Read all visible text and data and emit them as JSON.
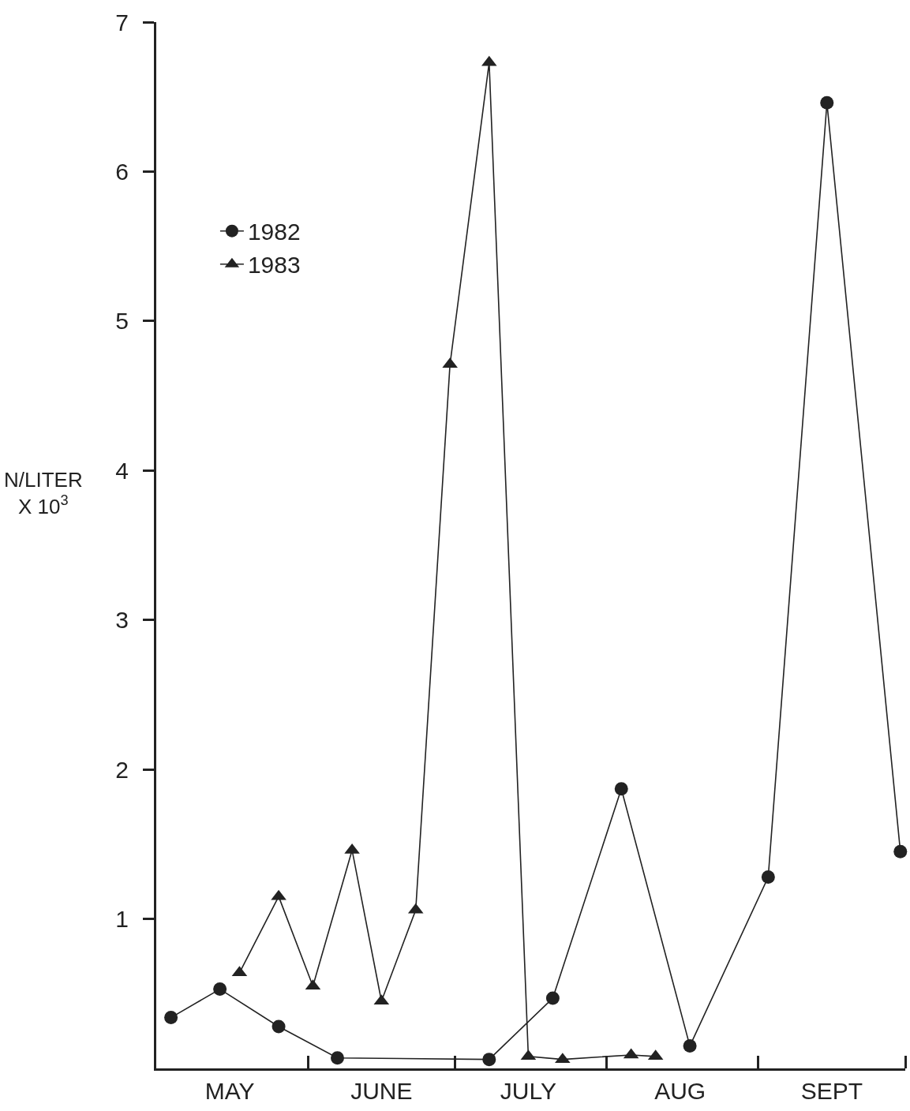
{
  "chart_data": {
    "type": "line",
    "ylabel": "N/LITER\nX 10$^{3}$",
    "xlim": [
      "--05-01",
      "--10-01"
    ],
    "ylim": [
      0,
      7
    ],
    "xticks": [
      {
        "value": "--05-16",
        "label": "MAY"
      },
      {
        "value": "--06-01",
        "label": null
      },
      {
        "value": "--06-16",
        "label": "JUNE"
      },
      {
        "value": "--07-01",
        "label": null
      },
      {
        "value": "--07-16",
        "label": "JULY"
      },
      {
        "value": "--08-01",
        "label": null
      },
      {
        "value": "--08-16",
        "label": "AUG"
      },
      {
        "value": "--09-01",
        "label": null
      },
      {
        "value": "--09-16",
        "label": "SEPT"
      },
      {
        "value": "--10-01",
        "label": null
      }
    ],
    "yticks": [
      1,
      2,
      3,
      4,
      5,
      6,
      7
    ],
    "legend": "top left",
    "line_style": "solid",
    "series": [
      {
        "name": "1982",
        "color": "#222222",
        "marker": "circle",
        "x": [
          "--05-04",
          "--05-14",
          "--05-26",
          "--06-07",
          "--07-08",
          "--07-21",
          "--08-04",
          "--08-18",
          "--09-03",
          "--09-15",
          "--09-30"
        ],
        "values": [
          0.34,
          0.53,
          0.28,
          0.07,
          0.06,
          0.47,
          1.87,
          0.15,
          1.28,
          6.46,
          1.45
        ]
      },
      {
        "name": "1983",
        "color": "#222222",
        "marker": "triangle",
        "x": [
          "--05-18",
          "--05-26",
          "--06-02",
          "--06-10",
          "--06-16",
          "--06-23",
          "--06-30",
          "--07-08",
          "--07-16",
          "--07-23",
          "--08-06",
          "--08-11"
        ],
        "values": [
          0.64,
          1.15,
          0.55,
          1.46,
          0.45,
          1.06,
          4.71,
          6.73,
          0.08,
          0.06,
          0.09,
          0.08
        ]
      }
    ]
  }
}
